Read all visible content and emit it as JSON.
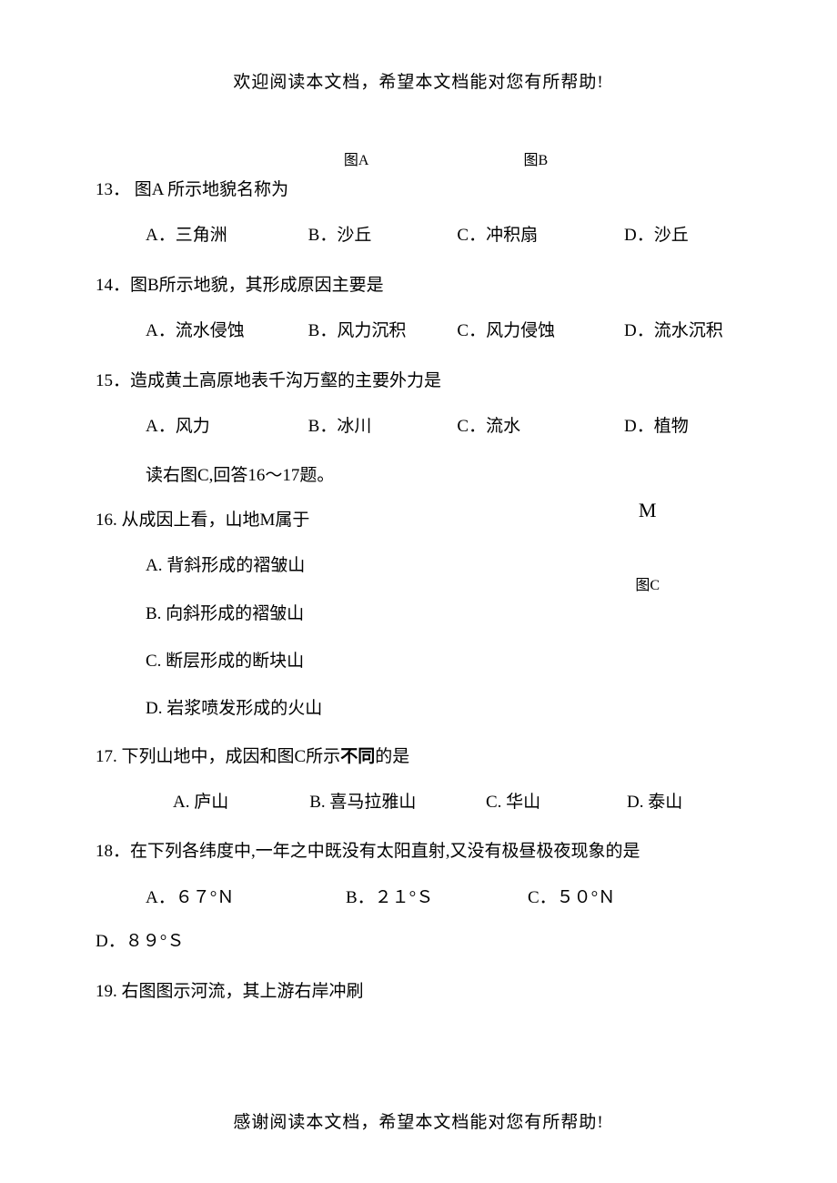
{
  "header": "欢迎阅读本文档，希望本文档能对您有所帮助!",
  "footer": "感谢阅读本文档，希望本文档能对您有所帮助!",
  "figureLabels": {
    "a": "图A",
    "b": "图B"
  },
  "figureC": {
    "marker": "M",
    "label": "图C"
  },
  "q13": {
    "stem": "13．  图A 所示地貌名称为",
    "a": "A．三角洲",
    "b": "B．沙丘",
    "c": "C．冲积扇",
    "d": "D．沙丘"
  },
  "q14": {
    "stem": "14．图B所示地貌，其形成原因主要是",
    "a": "A．流水侵蚀",
    "b": "B．风力沉积",
    "c": "C．风力侵蚀",
    "d": "D．流水沉积"
  },
  "q15": {
    "stem": "15．造成黄土高原地表千沟万壑的主要外力是",
    "a": "A．风力",
    "b": "B．冰川",
    "c": "C．流水",
    "d": "D．植物"
  },
  "instruction16": "读右图C,回答16～17题。",
  "q16": {
    "stem": "16.  从成因上看，山地M属于",
    "a": "A. 背斜形成的褶皱山",
    "b": "B. 向斜形成的褶皱山",
    "c": "C. 断层形成的断块山",
    "d": "D. 岩浆喷发形成的火山"
  },
  "q17": {
    "stemPrefix": "17.  下列山地中，成因和图C所示",
    "stemBold": "不同",
    "stemSuffix": "的是",
    "a": "A. 庐山",
    "b": "B. 喜马拉雅山",
    "c": "C. 华山",
    "d": "D. 泰山"
  },
  "q18": {
    "stem": "18．在下列各纬度中,一年之中既没有太阳直射,又没有极昼极夜现象的是",
    "a": "A．６７°Ｎ",
    "b": "B．２１°Ｓ",
    "c": "C．５０°Ｎ",
    "d": "D．８９°Ｓ"
  },
  "q19": {
    "stem": "19. 右图图示河流，其上游右岸冲刷"
  }
}
